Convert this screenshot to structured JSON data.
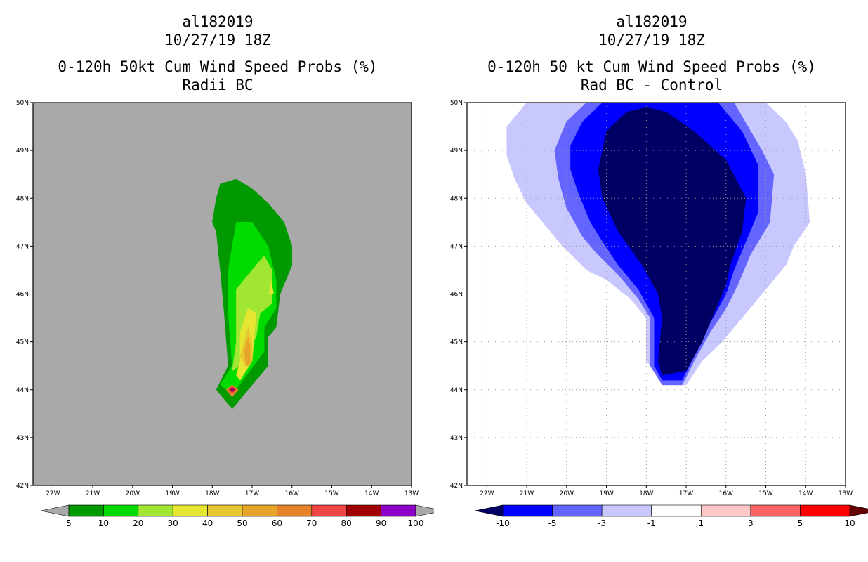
{
  "chart_data": [
    {
      "type": "filled-contour-map",
      "title_lines": [
        "al182019",
        "10/27/19 18Z",
        "0-120h 50kt Cum Wind Speed Probs (%)",
        "Radii BC"
      ],
      "xlabel": "",
      "ylabel": "",
      "xlim": [
        -22.5,
        -13
      ],
      "ylim": [
        42,
        50
      ],
      "x_ticks": [
        -22,
        -21,
        -20,
        -19,
        -18,
        -17,
        -16,
        -15,
        -14,
        -13
      ],
      "x_tick_labels": [
        "22W",
        "21W",
        "20W",
        "19W",
        "18W",
        "17W",
        "16W",
        "15W",
        "14W",
        "13W"
      ],
      "y_ticks": [
        42,
        43,
        44,
        45,
        46,
        47,
        48,
        49,
        50
      ],
      "y_tick_labels": [
        "42N",
        "43N",
        "44N",
        "45N",
        "46N",
        "47N",
        "48N",
        "49N",
        "50N"
      ],
      "grid": false,
      "background": "#a9a9a9",
      "colorbar": {
        "labels": [
          "5",
          "10",
          "20",
          "30",
          "40",
          "50",
          "60",
          "70",
          "80",
          "90",
          "100"
        ],
        "colors": [
          "#009a00",
          "#00dc00",
          "#a0e632",
          "#e6e632",
          "#e6c832",
          "#e6a528",
          "#e68228",
          "#f04646",
          "#a00000",
          "#8c00c8"
        ],
        "arrow_color": "#a9a9a9"
      },
      "contours": [
        {
          "level": 5,
          "color": "#009a00",
          "points": [
            [
              -17.8,
              48.3
            ],
            [
              -17.4,
              48.4
            ],
            [
              -17.0,
              48.2
            ],
            [
              -16.6,
              47.9
            ],
            [
              -16.2,
              47.5
            ],
            [
              -16.0,
              47.0
            ],
            [
              -16.0,
              46.6
            ],
            [
              -16.3,
              46.0
            ],
            [
              -16.4,
              45.3
            ],
            [
              -16.6,
              45.1
            ],
            [
              -16.6,
              44.5
            ],
            [
              -17.5,
              43.6
            ],
            [
              -17.9,
              44.0
            ],
            [
              -17.6,
              44.5
            ],
            [
              -17.7,
              45.6
            ],
            [
              -17.8,
              46.5
            ],
            [
              -17.9,
              47.3
            ],
            [
              -18.0,
              47.5
            ],
            [
              -17.9,
              48.0
            ]
          ]
        },
        {
          "level": 10,
          "color": "#00dc00",
          "points": [
            [
              -17.4,
              47.5
            ],
            [
              -17.0,
              47.5
            ],
            [
              -16.6,
              47.0
            ],
            [
              -16.4,
              46.3
            ],
            [
              -16.4,
              45.7
            ],
            [
              -16.7,
              45.3
            ],
            [
              -16.7,
              44.8
            ],
            [
              -17.5,
              43.9
            ],
            [
              -17.8,
              44.1
            ],
            [
              -17.5,
              44.5
            ],
            [
              -17.6,
              45.6
            ],
            [
              -17.6,
              46.5
            ],
            [
              -17.5,
              47.0
            ]
          ]
        },
        {
          "level": 20,
          "color": "#a0e632",
          "points": [
            [
              -16.7,
              46.8
            ],
            [
              -16.5,
              46.5
            ],
            [
              -16.5,
              45.8
            ],
            [
              -16.8,
              45.6
            ],
            [
              -16.9,
              45.1
            ],
            [
              -17.3,
              44.5
            ],
            [
              -17.5,
              44.4
            ],
            [
              -17.4,
              45.0
            ],
            [
              -17.4,
              46.1
            ],
            [
              -17.0,
              46.5
            ]
          ]
        },
        {
          "level": 30,
          "color": "#e6e632",
          "points": [
            [
              -17.1,
              45.7
            ],
            [
              -16.9,
              45.6
            ],
            [
              -17.0,
              44.6
            ],
            [
              -17.3,
              44.2
            ],
            [
              -17.4,
              44.3
            ],
            [
              -17.3,
              44.6
            ],
            [
              -17.3,
              45.2
            ]
          ]
        },
        {
          "level": 30,
          "color": "#e6e632",
          "points": [
            [
              -16.52,
              46.25
            ],
            [
              -16.46,
              46.0
            ],
            [
              -16.58,
              46.0
            ]
          ]
        },
        {
          "level": 40,
          "color": "#e6c832",
          "points": [
            [
              -17.1,
              45.3
            ],
            [
              -17.0,
              45.0
            ],
            [
              -17.0,
              44.6
            ],
            [
              -17.15,
              44.45
            ],
            [
              -17.3,
              44.7
            ],
            [
              -17.2,
              45.0
            ]
          ]
        },
        {
          "level": 50,
          "color": "#e6a528",
          "points": [
            [
              -17.1,
              45.1
            ],
            [
              -17.05,
              44.9
            ],
            [
              -17.05,
              44.55
            ],
            [
              -17.15,
              44.5
            ],
            [
              -17.2,
              44.8
            ]
          ]
        },
        {
          "level": 60,
          "color": "#e68228",
          "points": [
            [
              -17.5,
              44.1
            ],
            [
              -17.35,
              44.0
            ],
            [
              -17.5,
              43.85
            ],
            [
              -17.65,
              44.0
            ]
          ]
        },
        {
          "level": 70,
          "color": "#f04646",
          "points": [
            [
              -17.5,
              44.08
            ],
            [
              -17.4,
              44.0
            ],
            [
              -17.5,
              43.92
            ],
            [
              -17.6,
              44.0
            ]
          ]
        },
        {
          "level": 80,
          "color": "#a00000",
          "points": [
            [
              -17.5,
              44.05
            ],
            [
              -17.44,
              44.0
            ],
            [
              -17.5,
              43.95
            ],
            [
              -17.56,
              44.0
            ]
          ]
        },
        {
          "level": 90,
          "color": "#8c00c8",
          "points": [
            [
              -17.5,
              44.03
            ],
            [
              -17.47,
              44.0
            ],
            [
              -17.5,
              43.97
            ],
            [
              -17.53,
              44.0
            ]
          ]
        }
      ]
    },
    {
      "type": "filled-contour-map",
      "title_lines": [
        "al182019",
        "10/27/19 18Z",
        "0-120h 50 kt Cum Wind Speed Probs (%)",
        "Rad BC - Control"
      ],
      "xlabel": "",
      "ylabel": "",
      "xlim": [
        -22.5,
        -13
      ],
      "ylim": [
        42,
        50
      ],
      "x_ticks": [
        -22,
        -21,
        -20,
        -19,
        -18,
        -17,
        -16,
        -15,
        -14,
        -13
      ],
      "x_tick_labels": [
        "22W",
        "21W",
        "20W",
        "19W",
        "18W",
        "17W",
        "16W",
        "15W",
        "14W",
        "13W"
      ],
      "y_ticks": [
        42,
        43,
        44,
        45,
        46,
        47,
        48,
        49,
        50
      ],
      "y_tick_labels": [
        "42N",
        "43N",
        "44N",
        "45N",
        "46N",
        "47N",
        "48N",
        "49N",
        "50N"
      ],
      "grid": true,
      "background": "#ffffff",
      "colorbar": {
        "labels": [
          "-10",
          "-5",
          "-3",
          "-1",
          "1",
          "3",
          "5",
          "10"
        ],
        "colors": [
          "#0000ff",
          "#6464ff",
          "#c8c8ff",
          "#ffffff",
          "#ffc8c8",
          "#ff6464",
          "#ff0000"
        ],
        "arrow_low_color": "#000064",
        "arrow_high_color": "#640000"
      },
      "contours": [
        {
          "level": -1,
          "color": "#c8c8ff",
          "points": [
            [
              -21.0,
              50.0
            ],
            [
              -15.0,
              50.0
            ],
            [
              -14.5,
              49.6
            ],
            [
              -14.2,
              49.2
            ],
            [
              -14.0,
              48.5
            ],
            [
              -13.9,
              47.5
            ],
            [
              -14.3,
              47.0
            ],
            [
              -14.5,
              46.6
            ],
            [
              -15.1,
              46.0
            ],
            [
              -15.5,
              45.6
            ],
            [
              -16.1,
              45.0
            ],
            [
              -16.6,
              44.6
            ],
            [
              -17.0,
              44.1
            ],
            [
              -17.5,
              44.1
            ],
            [
              -18.0,
              44.6
            ],
            [
              -18.0,
              45.5
            ],
            [
              -18.4,
              45.9
            ],
            [
              -19.0,
              46.3
            ],
            [
              -19.5,
              46.5
            ],
            [
              -20.1,
              47.0
            ],
            [
              -20.5,
              47.4
            ],
            [
              -21.0,
              47.9
            ],
            [
              -21.3,
              48.4
            ],
            [
              -21.5,
              48.9
            ],
            [
              -21.5,
              49.5
            ]
          ]
        },
        {
          "level": -3,
          "color": "#6464ff",
          "points": [
            [
              -20.0,
              49.6
            ],
            [
              -19.5,
              50.0
            ],
            [
              -15.8,
              50.0
            ],
            [
              -15.1,
              49.0
            ],
            [
              -14.8,
              48.5
            ],
            [
              -14.9,
              47.5
            ],
            [
              -15.4,
              46.8
            ],
            [
              -15.7,
              46.2
            ],
            [
              -16.0,
              45.7
            ],
            [
              -16.4,
              45.2
            ],
            [
              -16.8,
              44.6
            ],
            [
              -17.1,
              44.1
            ],
            [
              -17.6,
              44.1
            ],
            [
              -17.9,
              44.5
            ],
            [
              -17.9,
              45.5
            ],
            [
              -18.2,
              45.9
            ],
            [
              -18.7,
              46.4
            ],
            [
              -19.3,
              46.9
            ],
            [
              -19.6,
              47.2
            ],
            [
              -20.0,
              47.8
            ],
            [
              -20.2,
              48.4
            ],
            [
              -20.3,
              49.0
            ]
          ]
        },
        {
          "level": -5,
          "color": "#0000ff",
          "points": [
            [
              -19.6,
              49.6
            ],
            [
              -19.1,
              50.0
            ],
            [
              -16.2,
              50.0
            ],
            [
              -15.6,
              49.4
            ],
            [
              -15.2,
              48.7
            ],
            [
              -15.2,
              47.7
            ],
            [
              -15.5,
              47.1
            ],
            [
              -15.8,
              46.5
            ],
            [
              -16.0,
              46.0
            ],
            [
              -16.4,
              45.4
            ],
            [
              -16.8,
              44.7
            ],
            [
              -17.1,
              44.2
            ],
            [
              -17.6,
              44.2
            ],
            [
              -17.8,
              44.5
            ],
            [
              -17.8,
              45.5
            ],
            [
              -18.2,
              46.1
            ],
            [
              -18.7,
              46.6
            ],
            [
              -19.1,
              47.1
            ],
            [
              -19.4,
              47.5
            ],
            [
              -19.7,
              48.1
            ],
            [
              -19.9,
              48.6
            ],
            [
              -19.9,
              49.1
            ]
          ]
        },
        {
          "level": -10,
          "color": "#000064",
          "points": [
            [
              -19.0,
              49.4
            ],
            [
              -18.5,
              49.8
            ],
            [
              -18.0,
              49.9
            ],
            [
              -17.5,
              49.8
            ],
            [
              -16.8,
              49.4
            ],
            [
              -16.0,
              48.8
            ],
            [
              -15.5,
              48.0
            ],
            [
              -15.6,
              47.3
            ],
            [
              -15.9,
              46.6
            ],
            [
              -16.0,
              46.2
            ],
            [
              -16.3,
              45.6
            ],
            [
              -16.6,
              45.0
            ],
            [
              -17.0,
              44.4
            ],
            [
              -17.6,
              44.3
            ],
            [
              -17.7,
              44.6
            ],
            [
              -17.6,
              45.5
            ],
            [
              -17.7,
              46.0
            ],
            [
              -18.1,
              46.6
            ],
            [
              -18.7,
              47.3
            ],
            [
              -19.1,
              48.0
            ],
            [
              -19.2,
              48.6
            ]
          ]
        }
      ]
    }
  ]
}
